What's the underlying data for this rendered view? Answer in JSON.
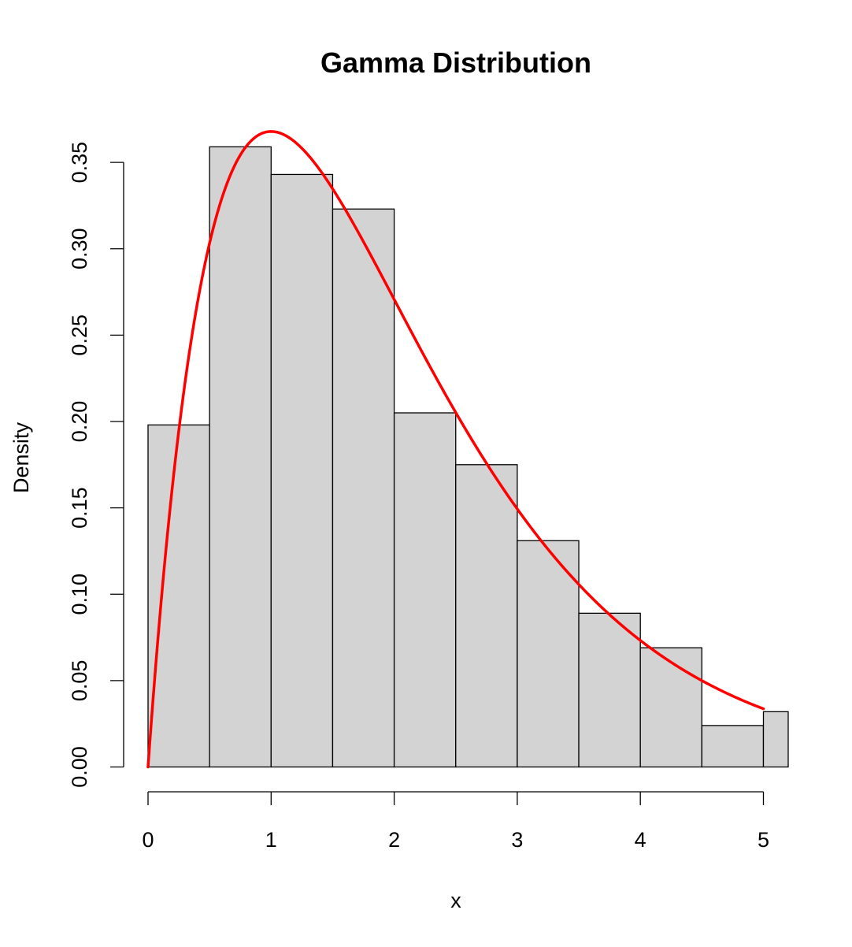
{
  "chart_data": {
    "type": "bar",
    "subtype": "histogram",
    "title": "Gamma Distribution",
    "xlabel": "x",
    "ylabel": "Density",
    "bin_edges": [
      0,
      0.5,
      1,
      1.5,
      2,
      2.5,
      3,
      3.5,
      4,
      4.5,
      5,
      5.5
    ],
    "densities": [
      0.198,
      0.359,
      0.343,
      0.323,
      0.205,
      0.175,
      0.131,
      0.089,
      0.069,
      0.024,
      0.032
    ],
    "x_ticks": [
      0,
      1,
      2,
      3,
      4,
      5
    ],
    "x_tick_labels": [
      "0",
      "1",
      "2",
      "3",
      "4",
      "5"
    ],
    "y_ticks": [
      0,
      0.05,
      0.1,
      0.15,
      0.2,
      0.25,
      0.3,
      0.35
    ],
    "y_tick_labels": [
      "0.00",
      "0.05",
      "0.10",
      "0.15",
      "0.20",
      "0.25",
      "0.30",
      "0.35"
    ],
    "xlim": [
      0,
      5.2
    ],
    "ylim": [
      0,
      0.37
    ],
    "bar_fill": "#d3d3d3",
    "bar_stroke": "#000000",
    "grid": false,
    "overlay_curve": {
      "type": "line",
      "distribution": "gamma",
      "shape": 2,
      "rate": 1,
      "x_range": [
        0,
        5
      ],
      "color": "#ff0000"
    }
  }
}
